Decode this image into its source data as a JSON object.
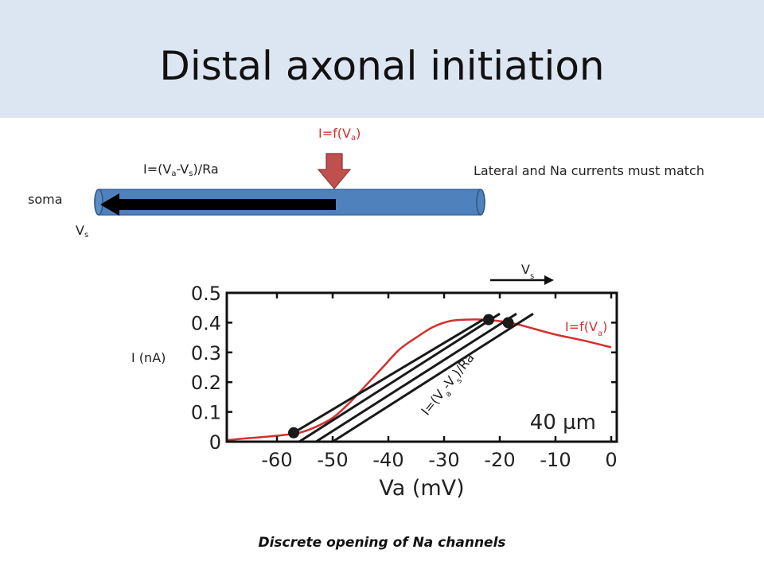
{
  "slide": {
    "title": "Distal axonal initiation",
    "footer": "Discrete opening of Na channels"
  },
  "axon_diagram": {
    "current_label": {
      "main": "I=f(V",
      "sub": "a",
      "tail": ")"
    },
    "lateral_label": {
      "p1": "I=(V",
      "s1": "a",
      "p2": "-V",
      "s2": "s",
      "p3": ")/Ra"
    },
    "soma_label": "soma",
    "vs_label": {
      "main": "V",
      "sub": "s"
    },
    "note": "Lateral and Na currents must match"
  },
  "chart_data": {
    "type": "line",
    "xlabel": "Va (mV)",
    "ylabel": "I (nA)",
    "xlim": [
      -69,
      1
    ],
    "ylim": [
      0,
      0.5
    ],
    "x_ticks": [
      -60,
      -50,
      -40,
      -30,
      -20,
      -10,
      0
    ],
    "y_ticks": [
      0,
      0.1,
      0.2,
      0.3,
      0.4,
      0.5
    ],
    "x_tick_labels": [
      "-60",
      "-50",
      "-40",
      "-30",
      "-20",
      "-10",
      "0"
    ],
    "y_tick_labels": [
      "0",
      "0.1",
      "0.2",
      "0.3",
      "0.4",
      "0.5"
    ],
    "annotation": "40 µm",
    "series": [
      {
        "label": {
          "main": "I=f(V",
          "sub": "a",
          "tail": ")"
        },
        "color": "#d62e2e",
        "x": [
          -69,
          -65,
          -60,
          -56,
          -53,
          -50,
          -47,
          -44,
          -41,
          -38,
          -35,
          -32,
          -29,
          -26,
          -23,
          -20,
          -17,
          -14,
          -10,
          -5,
          0
        ],
        "y": [
          0.005,
          0.012,
          0.02,
          0.03,
          0.05,
          0.08,
          0.13,
          0.19,
          0.25,
          0.31,
          0.35,
          0.385,
          0.405,
          0.41,
          0.41,
          0.405,
          0.395,
          0.38,
          0.36,
          0.34,
          0.317
        ]
      }
    ],
    "load_lines": {
      "label": {
        "p1": "I=(V",
        "s1": "a",
        "p2": "-V",
        "s2": "s",
        "p3": ")/Ra"
      },
      "color": "#1a1a1a",
      "lines": [
        {
          "x": [
            -57,
            -23
          ],
          "y": [
            0.03,
            0.41
          ]
        },
        {
          "x": [
            -56,
            -20
          ],
          "y": [
            0,
            0.43
          ]
        },
        {
          "x": [
            -53,
            -17
          ],
          "y": [
            0,
            0.43
          ]
        },
        {
          "x": [
            -50,
            -14
          ],
          "y": [
            0,
            0.43
          ]
        }
      ]
    },
    "points": [
      {
        "x": -57,
        "y": 0.03
      },
      {
        "x": -22,
        "y": 0.41
      },
      {
        "x": -18.5,
        "y": 0.4
      }
    ],
    "shift_arrow": {
      "label": {
        "main": "V",
        "sub": "s"
      }
    }
  }
}
